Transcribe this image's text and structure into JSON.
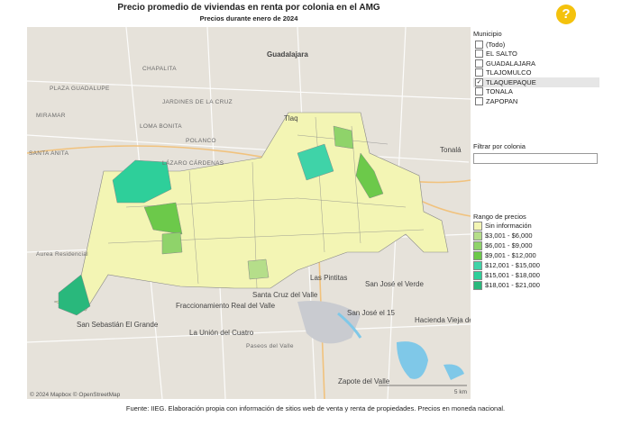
{
  "header": {
    "title": "Precio promedio de viviendas en renta por colonia en el AMG",
    "subtitle": "Precios durante enero de 2024",
    "help": "?"
  },
  "filters": {
    "municipio": {
      "label": "Municipio",
      "options": [
        {
          "label": "(Todo)",
          "checked": false
        },
        {
          "label": "EL SALTO",
          "checked": false
        },
        {
          "label": "GUADALAJARA",
          "checked": false
        },
        {
          "label": "TLAJOMULCO",
          "checked": false
        },
        {
          "label": "TLAQUEPAQUE",
          "checked": true
        },
        {
          "label": "TONALA",
          "checked": false
        },
        {
          "label": "ZAPOPAN",
          "checked": false
        }
      ]
    },
    "colonia": {
      "label": "Filtrar por colonia"
    }
  },
  "legend": {
    "title": "Rango de precios",
    "items": [
      {
        "label": "Sin información",
        "color": "#f3f5b4"
      },
      {
        "label": "$3,001 - $6,000",
        "color": "#b5de8a"
      },
      {
        "label": "$6,001 - $9,000",
        "color": "#8fd36a"
      },
      {
        "label": "$9,001 - $12,000",
        "color": "#6cc94a"
      },
      {
        "label": "$12,001 - $15,000",
        "color": "#3fd3a8"
      },
      {
        "label": "$15,001 - $18,000",
        "color": "#2ecf9a"
      },
      {
        "label": "$18,001 - $21,000",
        "color": "#29b87c"
      }
    ]
  },
  "map": {
    "labels": [
      "Guadalajara",
      "Tlaq",
      "Tonalá",
      "CHAPALITA",
      "PLAZA GUADALUPE",
      "MIRAMAR",
      "LOMA BONITA",
      "POLANCO",
      "LÁZARO CÁRDENAS",
      "SANTA ANITA",
      "Aurea Residencial",
      "Las Pintitas",
      "San José el Verde",
      "San José el 15",
      "Hacienda Vieja del Castillo",
      "Santa Cruz del Valle",
      "Fraccionamiento Real del Valle",
      "La Unión del Cuatro",
      "Paseos del Valle",
      "San Sebastián El Grande",
      "Zapote del Valle",
      "JARDINES DE LA CRUZ"
    ],
    "attribution": "© 2024 Mapbox © OpenStreetMap",
    "scale": "5 km"
  },
  "footer": "Fuente: IIEG. Elaboración propia con información de sitios web de venta y renta de propiedades. Precios en moneda nacional."
}
